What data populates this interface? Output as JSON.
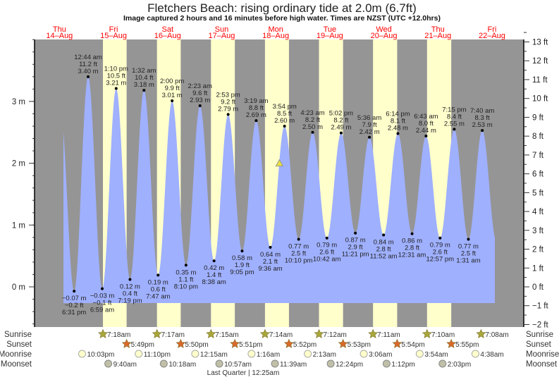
{
  "title": "Fletchers Beach: rising  ordinary tide at 2.0m (6.7ft)",
  "subtitle": "Image captured 2 hours and 16 minutes before high water. Times are NZST (UTC +12.0hrs)",
  "colors": {
    "night": "#959595",
    "day": "#ffffcc",
    "water": "#9fb0ff",
    "day_label": "#ff0000",
    "sunrise": "#a8a83a",
    "sunset": "#d9692a",
    "moonrise": "#ffffcc",
    "moonset": "#c0c0a8",
    "marker": "#e8e040"
  },
  "chart_data": {
    "type": "area",
    "title": "Fletchers Beach: rising  ordinary tide at 2.0m (6.7ft)",
    "days": [
      {
        "dow": "Thu",
        "date": "14–Aug"
      },
      {
        "dow": "Fri",
        "date": "15–Aug"
      },
      {
        "dow": "Sat",
        "date": "16–Aug"
      },
      {
        "dow": "Sun",
        "date": "17–Aug"
      },
      {
        "dow": "Mon",
        "date": "18–Aug"
      },
      {
        "dow": "Tue",
        "date": "19–Aug"
      },
      {
        "dow": "Wed",
        "date": "20–Aug"
      },
      {
        "dow": "Thu",
        "date": "21–Aug"
      },
      {
        "dow": "Fri",
        "date": "22–Aug"
      }
    ],
    "left_axis": {
      "unit": "m",
      "ticks": [
        "0 m",
        "1 m",
        "2 m",
        "3 m"
      ],
      "values": [
        0,
        1,
        2,
        3
      ]
    },
    "right_axis": {
      "unit": "ft",
      "ticks": [
        "−2 ft",
        "−1 ft",
        "0 ft",
        "1 ft",
        "2 ft",
        "3 ft",
        "4 ft",
        "5 ft",
        "6 ft",
        "7 ft",
        "8 ft",
        "9 ft",
        "10 ft",
        "11 ft",
        "12 ft",
        "13 ft"
      ],
      "values": [
        -2,
        -1,
        0,
        1,
        2,
        3,
        4,
        5,
        6,
        7,
        8,
        9,
        10,
        11,
        12,
        13
      ]
    },
    "current": {
      "day": 4,
      "hour": 13.63,
      "height_m": 2.0
    },
    "tides": [
      {
        "day": 0,
        "hour": 18.52,
        "type": "low",
        "m": "−0.07 m",
        "ft": "−0.2 ft",
        "time": "6:31 pm",
        "v": -0.07
      },
      {
        "day": 1,
        "hour": 0.73,
        "type": "high",
        "m": "3.40 m",
        "ft": "11.2 ft",
        "time": "12:44 am",
        "v": 3.4
      },
      {
        "day": 1,
        "hour": 6.98,
        "type": "low",
        "m": "−0.03 m",
        "ft": "−0.1 ft",
        "time": "6:59 am",
        "v": -0.03
      },
      {
        "day": 1,
        "hour": 13.17,
        "type": "high",
        "m": "3.21 m",
        "ft": "10.5 ft",
        "time": "1:10 pm",
        "v": 3.21
      },
      {
        "day": 1,
        "hour": 19.32,
        "type": "low",
        "m": "0.12 m",
        "ft": "0.4 ft",
        "time": "7:19 pm",
        "v": 0.12
      },
      {
        "day": 2,
        "hour": 1.53,
        "type": "high",
        "m": "3.18 m",
        "ft": "10.4 ft",
        "time": "1:32 am",
        "v": 3.18
      },
      {
        "day": 2,
        "hour": 7.78,
        "type": "low",
        "m": "0.19 m",
        "ft": "0.6 ft",
        "time": "7:47 am",
        "v": 0.19
      },
      {
        "day": 2,
        "hour": 14.0,
        "type": "high",
        "m": "3.01 m",
        "ft": "9.9 ft",
        "time": "2:00 pm",
        "v": 3.01
      },
      {
        "day": 2,
        "hour": 20.17,
        "type": "low",
        "m": "0.35 m",
        "ft": "1.1 ft",
        "time": "8:10 pm",
        "v": 0.35
      },
      {
        "day": 3,
        "hour": 2.38,
        "type": "high",
        "m": "2.93 m",
        "ft": "9.6 ft",
        "time": "2:23 am",
        "v": 2.93
      },
      {
        "day": 3,
        "hour": 8.63,
        "type": "low",
        "m": "0.42 m",
        "ft": "1.4 ft",
        "time": "8:38 am",
        "v": 0.42
      },
      {
        "day": 3,
        "hour": 14.88,
        "type": "high",
        "m": "2.79 m",
        "ft": "9.2 ft",
        "time": "2:53 pm",
        "v": 2.79
      },
      {
        "day": 3,
        "hour": 21.08,
        "type": "low",
        "m": "0.58 m",
        "ft": "1.9 ft",
        "time": "9:05 pm",
        "v": 0.58
      },
      {
        "day": 4,
        "hour": 3.32,
        "type": "high",
        "m": "2.69 m",
        "ft": "8.8 ft",
        "time": "3:19 am",
        "v": 2.69
      },
      {
        "day": 4,
        "hour": 9.6,
        "type": "low",
        "m": "0.64 m",
        "ft": "2.1 ft",
        "time": "9:36 am",
        "v": 0.64
      },
      {
        "day": 4,
        "hour": 15.9,
        "type": "high",
        "m": "2.60 m",
        "ft": "8.5 ft",
        "time": "3:54 pm",
        "v": 2.6
      },
      {
        "day": 4,
        "hour": 22.17,
        "type": "low",
        "m": "0.77 m",
        "ft": "2.5 ft",
        "time": "10:10 pm",
        "v": 0.77
      },
      {
        "day": 5,
        "hour": 4.38,
        "type": "high",
        "m": "2.50 m",
        "ft": "8.2 ft",
        "time": "4:23 am",
        "v": 2.5
      },
      {
        "day": 5,
        "hour": 10.7,
        "type": "low",
        "m": "0.79 m",
        "ft": "2.6 ft",
        "time": "10:42 am",
        "v": 0.79
      },
      {
        "day": 5,
        "hour": 17.03,
        "type": "high",
        "m": "2.49 m",
        "ft": "8.2 ft",
        "time": "5:02 pm",
        "v": 2.49
      },
      {
        "day": 5,
        "hour": 23.35,
        "type": "low",
        "m": "0.87 m",
        "ft": "2.9 ft",
        "time": "11:21 pm",
        "v": 0.87
      },
      {
        "day": 6,
        "hour": 5.6,
        "type": "high",
        "m": "2.42 m",
        "ft": "7.9 ft",
        "time": "5:36 am",
        "v": 2.42
      },
      {
        "day": 6,
        "hour": 11.87,
        "type": "low",
        "m": "0.84 m",
        "ft": "2.8 ft",
        "time": "11:52 am",
        "v": 0.84
      },
      {
        "day": 6,
        "hour": 18.23,
        "type": "high",
        "m": "2.48 m",
        "ft": "8.1 ft",
        "time": "6:14 pm",
        "v": 2.48
      },
      {
        "day": 7,
        "hour": 0.52,
        "type": "low",
        "m": "0.86 m",
        "ft": "2.8 ft",
        "time": "12:31 am",
        "v": 0.86
      },
      {
        "day": 7,
        "hour": 6.72,
        "type": "high",
        "m": "2.44 m",
        "ft": "8.0 ft",
        "time": "6:43 am",
        "v": 2.44
      },
      {
        "day": 7,
        "hour": 12.95,
        "type": "low",
        "m": "0.79 m",
        "ft": "2.6 ft",
        "time": "12:57 pm",
        "v": 0.79
      },
      {
        "day": 7,
        "hour": 19.25,
        "type": "high",
        "m": "2.55 m",
        "ft": "8.4 ft",
        "time": "7:15 pm",
        "v": 2.55
      },
      {
        "day": 8,
        "hour": 1.52,
        "type": "low",
        "m": "0.77 m",
        "ft": "2.5 ft",
        "time": "1:31 am",
        "v": 0.77
      },
      {
        "day": 8,
        "hour": 7.67,
        "type": "high",
        "m": "2.53 m",
        "ft": "8.3 ft",
        "time": "7:40 am",
        "v": 2.53
      }
    ],
    "sun": [
      {
        "day": 1,
        "rise": "7:18am",
        "rh": 7.3,
        "set": "5:49pm",
        "sh": 17.82
      },
      {
        "day": 2,
        "rise": "7:17am",
        "rh": 7.28,
        "set": "5:50pm",
        "sh": 17.83
      },
      {
        "day": 3,
        "rise": "7:15am",
        "rh": 7.25,
        "set": "5:51pm",
        "sh": 17.85
      },
      {
        "day": 4,
        "rise": "7:14am",
        "rh": 7.23,
        "set": "5:52pm",
        "sh": 17.87
      },
      {
        "day": 5,
        "rise": "7:12am",
        "rh": 7.2,
        "set": "5:53pm",
        "sh": 17.88
      },
      {
        "day": 6,
        "rise": "7:11am",
        "rh": 7.18,
        "set": "5:54pm",
        "sh": 17.9
      },
      {
        "day": 7,
        "rise": "7:10am",
        "rh": 7.17,
        "set": "5:55pm",
        "sh": 17.92
      },
      {
        "day": 8,
        "rise": "7:08am",
        "rh": 7.13
      }
    ],
    "moonrise": [
      {
        "day": 0,
        "h": 22.05,
        "t": "10:03pm"
      },
      {
        "day": 1,
        "h": 23.17,
        "t": "11:10pm"
      },
      {
        "day": 3,
        "h": 0.25,
        "t": "12:15am"
      },
      {
        "day": 4,
        "h": 1.27,
        "t": "1:16am"
      },
      {
        "day": 5,
        "h": 2.22,
        "t": "2:13am"
      },
      {
        "day": 6,
        "h": 3.1,
        "t": "3:06am"
      },
      {
        "day": 7,
        "h": 3.9,
        "t": "3:54am"
      },
      {
        "day": 8,
        "h": 4.63,
        "t": "4:38am"
      }
    ],
    "moonset": [
      {
        "day": 1,
        "h": 9.67,
        "t": "9:40am"
      },
      {
        "day": 2,
        "h": 10.3,
        "t": "10:18am"
      },
      {
        "day": 3,
        "h": 10.95,
        "t": "10:57am"
      },
      {
        "day": 4,
        "h": 11.65,
        "t": "11:39am"
      },
      {
        "day": 5,
        "h": 12.4,
        "t": "12:24pm"
      },
      {
        "day": 6,
        "h": 13.2,
        "t": "1:12pm"
      },
      {
        "day": 7,
        "h": 14.05,
        "t": "2:03pm"
      }
    ],
    "moon_phase": {
      "label": "Last Quarter | 12:25am",
      "day": 3,
      "h": 0.42
    }
  },
  "row_labels": {
    "sunrise": "Sunrise",
    "sunset": "Sunset",
    "moonrise": "Moonrise",
    "moonset": "Moonset"
  }
}
